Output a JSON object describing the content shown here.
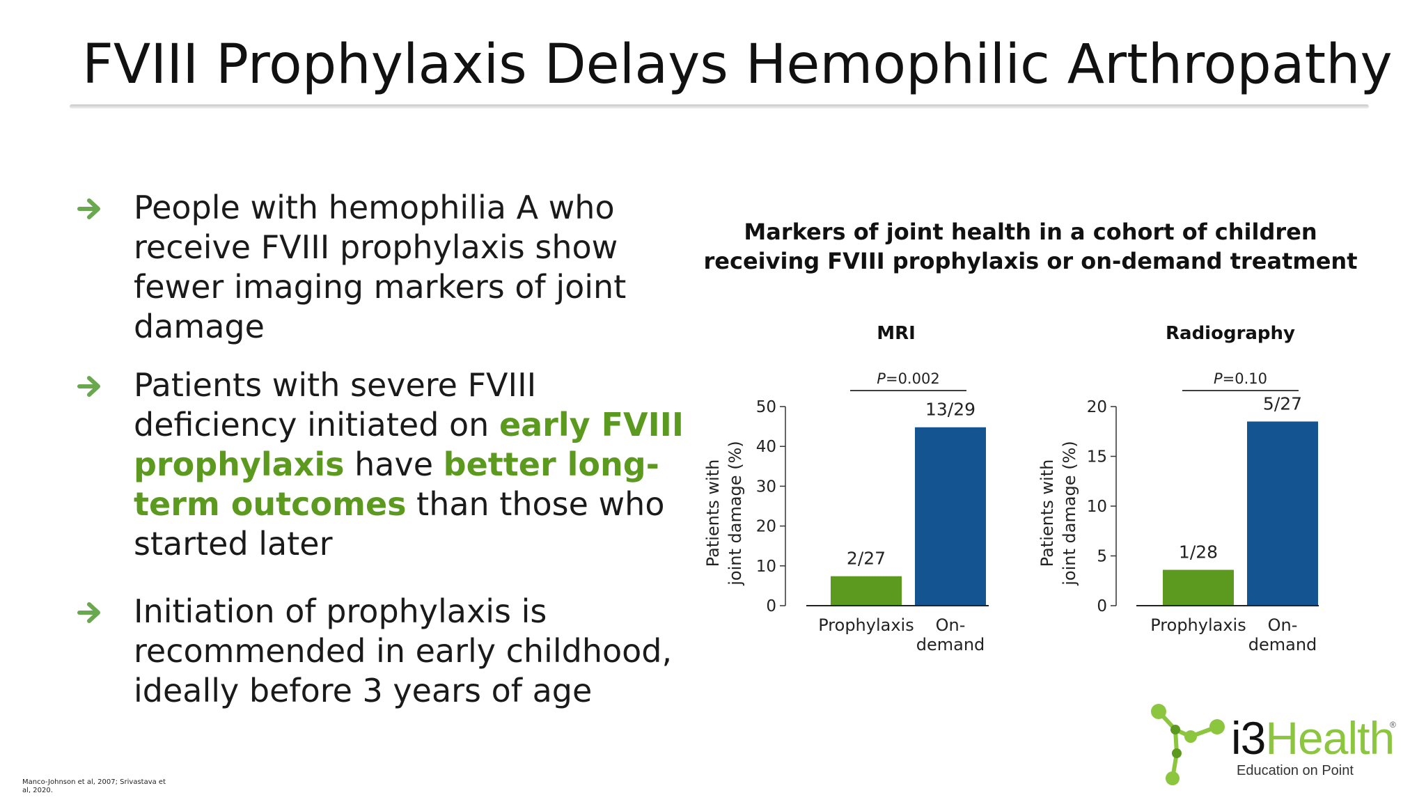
{
  "title": "FVIII Prophylaxis Delays Hemophilic Arthropathy",
  "bullets": [
    {
      "parts": [
        {
          "text": "People with hemophilia A who receive FVIII prophylaxis show fewer imaging markers of joint damage",
          "hl": false
        }
      ]
    },
    {
      "parts": [
        {
          "text": "Patients with severe FVIII deficiency initiated on ",
          "hl": false
        },
        {
          "text": "early FVIII prophylaxis",
          "hl": true
        },
        {
          "text": " have ",
          "hl": false
        },
        {
          "text": "better long-term outcomes",
          "hl": true
        },
        {
          "text": " than those who started later",
          "hl": false
        }
      ]
    },
    {
      "parts": [
        {
          "text": "Initiation of prophylaxis is recommended in early childhood, ideally before 3 years of age",
          "hl": false
        }
      ]
    }
  ],
  "footnote": "Manco-Johnson et al, 2007; Srivastava et al, 2020.",
  "chart_title_lines": [
    "Markers of joint health in a cohort of children",
    "receiving FVIII prophylaxis or on-demand treatment"
  ],
  "colors": {
    "accent_green": "#5b9a1f",
    "prophylaxis": "#5b9a1f",
    "on_demand": "#145591",
    "arrow": "#6aa84f"
  },
  "icons": {
    "bullet": "arrow-right-icon"
  },
  "chart_data": [
    {
      "type": "bar",
      "title": "MRI",
      "ylabel": "Patients with joint damage (%)",
      "ylabel_lines": [
        "Patients with",
        "joint damage (%)"
      ],
      "ylim": [
        0,
        50
      ],
      "yticks": [
        0,
        10,
        20,
        30,
        40,
        50
      ],
      "categories": [
        "Prophylaxis",
        "On-demand"
      ],
      "category_lines": [
        [
          "Prophylaxis"
        ],
        [
          "On-",
          "demand"
        ]
      ],
      "values": [
        7.4,
        44.8
      ],
      "data_labels": [
        "2/27",
        "13/29"
      ],
      "p_value_prefix": "P",
      "p_value_suffix": "=0.002",
      "grid": false
    },
    {
      "type": "bar",
      "title": "Radiography",
      "ylabel": "Patients with joint damage (%)",
      "ylabel_lines": [
        "Patients with",
        "joint damage (%)"
      ],
      "ylim": [
        0,
        20
      ],
      "yticks": [
        0,
        5,
        10,
        15,
        20
      ],
      "categories": [
        "Prophylaxis",
        "On-demand"
      ],
      "category_lines": [
        [
          "Prophylaxis"
        ],
        [
          "On-",
          "demand"
        ]
      ],
      "values": [
        3.6,
        18.5
      ],
      "data_labels": [
        "1/28",
        "5/27"
      ],
      "p_value_prefix": "P",
      "p_value_suffix": "=0.10",
      "grid": false
    }
  ],
  "logo": {
    "name": "i3Health",
    "name_part1": "i3",
    "name_part2": "Health",
    "tagline": "Education on Point",
    "reg": "®"
  }
}
